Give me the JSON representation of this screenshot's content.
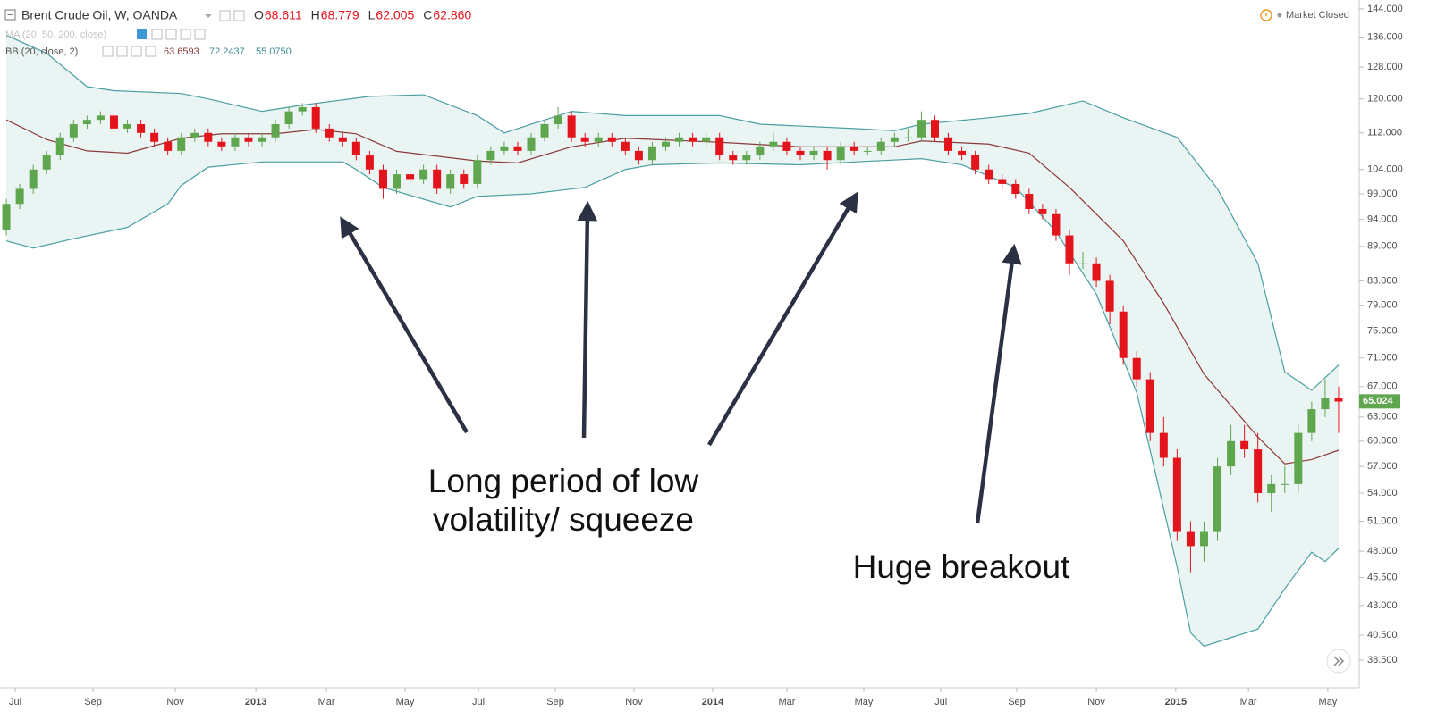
{
  "chart_data": {
    "type": "candlestick",
    "title": "Brent Crude Oil, W, OANDA",
    "legend_ohlc": [
      {
        "label": "O",
        "value": "68.611"
      },
      {
        "label": "H",
        "value": "68.779"
      },
      {
        "label": "L",
        "value": "62.005"
      },
      {
        "label": "C",
        "value": "62.860"
      }
    ],
    "indicator_labels": [
      {
        "name": "MA (20, 50, 200, close)",
        "values": []
      },
      {
        "name": "BB (20, close, 2)",
        "values": [
          "63.6593",
          "72.2437",
          "55.0750"
        ]
      }
    ],
    "status": "Market Closed",
    "annotations": [
      {
        "lines": [
          "Long period of low",
          "volatility/ squeeze"
        ]
      },
      {
        "lines": [
          "Huge breakout"
        ]
      }
    ],
    "last_price": 65.024,
    "up_color": "#5fa64e",
    "down_color": "#e3141c",
    "open": [
      92,
      97,
      100,
      104,
      107,
      111,
      114,
      115,
      116,
      113,
      114,
      112,
      110,
      108,
      111,
      112,
      110,
      109,
      111,
      110,
      111,
      114,
      117,
      118,
      113,
      111,
      110,
      107,
      104,
      100,
      103,
      102,
      104,
      100,
      103,
      101,
      106,
      108,
      109,
      108,
      111,
      114,
      116,
      111,
      110,
      111,
      110,
      108,
      106,
      109,
      110,
      111,
      110,
      111,
      107,
      106,
      107,
      109,
      110,
      108,
      107,
      108,
      106,
      109,
      108,
      108,
      110,
      111,
      111,
      115,
      111,
      108,
      107,
      104,
      102,
      101,
      99,
      96,
      95,
      91,
      86,
      86,
      83,
      78,
      71,
      68,
      61,
      58,
      50,
      48.5,
      50,
      57,
      60,
      59,
      54,
      55,
      55,
      61,
      64,
      65.5
    ],
    "high": [
      98,
      101,
      105,
      108,
      112,
      115,
      116,
      117,
      117,
      115,
      115,
      113,
      111,
      112,
      113,
      113,
      111,
      112,
      112,
      112,
      115,
      118,
      119,
      119,
      114,
      112,
      111,
      108,
      105,
      104,
      104,
      105,
      105,
      104,
      104,
      107,
      109,
      110,
      110,
      112,
      115,
      118,
      117,
      112,
      112,
      112,
      111,
      109,
      110,
      111,
      112,
      112,
      112,
      112,
      108,
      108,
      110,
      112,
      111,
      109,
      109,
      109,
      110,
      110,
      109,
      111,
      112,
      113,
      117,
      116,
      112,
      109,
      108,
      105,
      103,
      102,
      100,
      97,
      96,
      92,
      88,
      87,
      84,
      79,
      72,
      69,
      63,
      59,
      51,
      51,
      58,
      62,
      62,
      61,
      56,
      57,
      62,
      65,
      68,
      67
    ],
    "low": [
      91,
      96,
      99,
      103,
      106,
      110,
      113,
      114,
      112,
      112,
      111,
      109,
      107,
      107,
      110,
      109,
      108,
      108,
      109,
      109,
      110,
      113,
      116,
      112,
      110,
      109,
      106,
      103,
      98,
      99,
      101,
      101,
      99,
      99,
      100,
      100,
      105,
      107,
      107,
      107,
      110,
      113,
      110,
      109,
      109,
      109,
      107,
      105,
      105,
      108,
      109,
      109,
      109,
      106,
      105,
      105,
      106,
      108,
      107,
      106,
      106,
      104,
      105,
      107,
      107,
      107,
      109,
      110,
      110,
      110,
      107,
      106,
      103,
      101,
      100,
      98,
      95,
      94,
      90,
      84,
      85,
      82,
      76,
      70,
      67,
      60,
      57,
      49,
      46,
      47,
      49,
      56,
      58,
      53,
      52,
      54,
      54,
      60,
      63,
      61
    ],
    "close": [
      97,
      100,
      104,
      107,
      111,
      114,
      115,
      116,
      113,
      114,
      112,
      110,
      108,
      111,
      112,
      110,
      109,
      111,
      110,
      111,
      114,
      117,
      118,
      113,
      111,
      110,
      107,
      104,
      100,
      103,
      102,
      104,
      100,
      103,
      101,
      106,
      108,
      109,
      108,
      111,
      114,
      116,
      111,
      110,
      111,
      110,
      108,
      106,
      109,
      110,
      111,
      110,
      111,
      107,
      106,
      107,
      109,
      110,
      108,
      107,
      108,
      106,
      109,
      108,
      108,
      110,
      111,
      111,
      115,
      111,
      108,
      107,
      104,
      102,
      101,
      99,
      96,
      95,
      91,
      86,
      86,
      83,
      78,
      71,
      68,
      61,
      58,
      50,
      48.5,
      50,
      57,
      60,
      59,
      54,
      55,
      55,
      61,
      64,
      65.5,
      65
    ],
    "series": [
      {
        "name": "BB upper",
        "color": "#4b9ea3",
        "x": [
          0,
          3,
          6,
          8,
          13,
          15,
          19,
          22,
          27,
          31,
          35,
          37,
          39,
          42,
          46,
          53,
          56,
          63,
          66,
          68,
          73,
          76,
          80,
          83,
          87,
          90,
          93,
          95,
          97,
          99
        ],
        "values": [
          136.5,
          131.6,
          123,
          122,
          121.3,
          120,
          117,
          118.5,
          120.6,
          121,
          116,
          112,
          114,
          117,
          116,
          116,
          114,
          113,
          112.5,
          114,
          115.5,
          116.5,
          119.5,
          115.5,
          111,
          100,
          86,
          69,
          66.5,
          70
        ]
      },
      {
        "name": "BB basis",
        "color": "#8b3a3a",
        "x": [
          0,
          3,
          6,
          9,
          13,
          16,
          20,
          23,
          26,
          29,
          35,
          38,
          42,
          46,
          53,
          59,
          66,
          68,
          73,
          76,
          79,
          83,
          86,
          89,
          93,
          95,
          97,
          99
        ],
        "values": [
          115,
          110.5,
          108,
          107.5,
          110.8,
          111.8,
          111.8,
          112.8,
          111.8,
          107.9,
          105.8,
          105.4,
          108.9,
          110.8,
          109.9,
          108.9,
          108.9,
          110.2,
          109.5,
          107.5,
          100.3,
          90,
          79.3,
          68.7,
          60.5,
          57.3,
          57.8,
          58.9
        ]
      },
      {
        "name": "BB lower",
        "color": "#4b9ea3",
        "x": [
          0,
          2,
          5,
          9,
          12,
          13,
          15,
          19,
          25,
          26,
          28,
          33,
          35,
          39,
          43,
          46,
          48,
          53,
          59,
          63,
          68,
          71,
          75,
          78,
          81,
          84,
          87,
          88,
          89,
          91,
          93,
          95,
          97,
          98,
          99
        ],
        "values": [
          90,
          88.7,
          90.4,
          92.5,
          97,
          100.7,
          104.5,
          105.6,
          105.6,
          104,
          100.3,
          96.4,
          98.5,
          99,
          100.3,
          104,
          105,
          105.4,
          105,
          105.6,
          106.3,
          105,
          100.3,
          91.7,
          80.8,
          66.2,
          46.5,
          40.7,
          39.6,
          40.3,
          41,
          44.5,
          47.9,
          47,
          48.3
        ]
      }
    ],
    "band_fill": "#e9f4f3",
    "ylog": true,
    "ylim": [
      36.4,
      146.6
    ],
    "yticks": [
      {
        "value": 144,
        "label": "144.000"
      },
      {
        "value": 136,
        "label": "136.000"
      },
      {
        "value": 128,
        "label": "128.000"
      },
      {
        "value": 120,
        "label": "120.000"
      },
      {
        "value": 112,
        "label": "112.000"
      },
      {
        "value": 104,
        "label": "104.000"
      },
      {
        "value": 99,
        "label": "99.000"
      },
      {
        "value": 94,
        "label": "94.000"
      },
      {
        "value": 89,
        "label": "89.000"
      },
      {
        "value": 83,
        "label": "83.000"
      },
      {
        "value": 79,
        "label": "79.000"
      },
      {
        "value": 75,
        "label": "75.000"
      },
      {
        "value": 71,
        "label": "71.000"
      },
      {
        "value": 67,
        "label": "67.000"
      },
      {
        "value": 63,
        "label": "63.000"
      },
      {
        "value": 60,
        "label": "60.000"
      },
      {
        "value": 57,
        "label": "57.000"
      },
      {
        "value": 54,
        "label": "54.000"
      },
      {
        "value": 51,
        "label": "51.000"
      },
      {
        "value": 48,
        "label": "48.000"
      },
      {
        "value": 45.5,
        "label": "45.500"
      },
      {
        "value": 43,
        "label": "43.000"
      },
      {
        "value": 40.5,
        "label": "40.500"
      },
      {
        "value": 38.5,
        "label": "38.500"
      }
    ],
    "xlim": [
      -0.47,
      100.53
    ],
    "xticks": [
      {
        "value": 0.66,
        "label": "Jul"
      },
      {
        "value": 6.45,
        "label": "Sep"
      },
      {
        "value": 12.56,
        "label": "Nov"
      },
      {
        "value": 18.54,
        "label": "2013"
      },
      {
        "value": 23.79,
        "label": "Mar"
      },
      {
        "value": 29.63,
        "label": "May"
      },
      {
        "value": 35.08,
        "label": "Jul"
      },
      {
        "value": 40.8,
        "label": "Sep"
      },
      {
        "value": 46.64,
        "label": "Nov"
      },
      {
        "value": 52.49,
        "label": "2014"
      },
      {
        "value": 58,
        "label": "Mar"
      },
      {
        "value": 63.72,
        "label": "May"
      },
      {
        "value": 69.44,
        "label": "Jul"
      },
      {
        "value": 75.08,
        "label": "Sep"
      },
      {
        "value": 81,
        "label": "Nov"
      },
      {
        "value": 86.9,
        "label": "2015"
      },
      {
        "value": 92.3,
        "label": "Mar"
      },
      {
        "value": 98.2,
        "label": "May"
      }
    ]
  }
}
